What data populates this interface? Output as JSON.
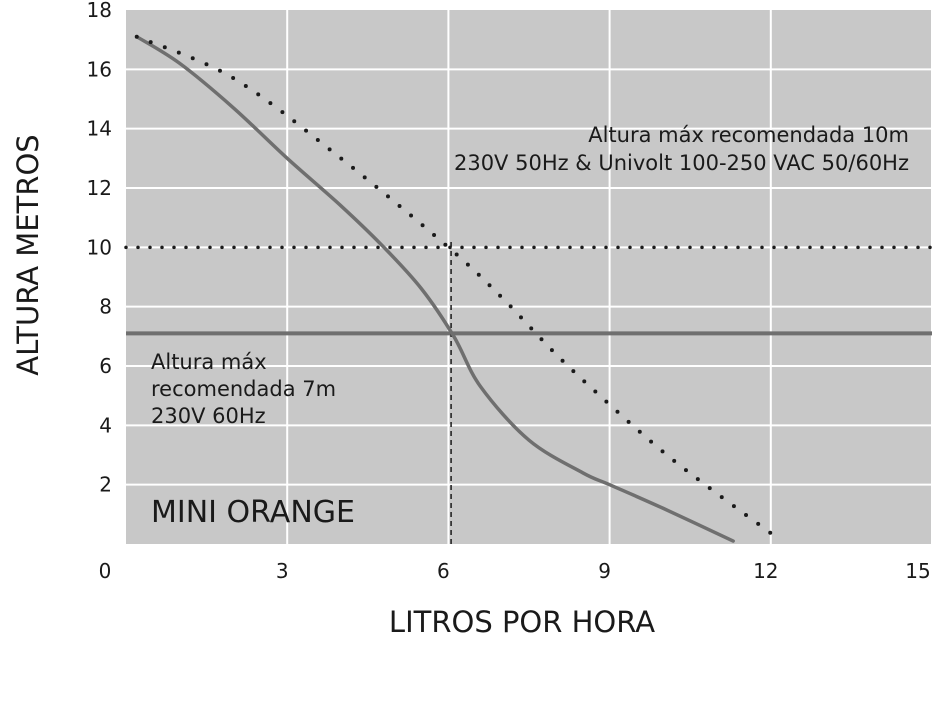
{
  "chart_data": {
    "type": "line",
    "title": "",
    "xlabel": "LITROS POR HORA",
    "ylabel": "ALTURA METROS",
    "xlim": [
      0,
      15
    ],
    "ylim": [
      0,
      18
    ],
    "x_ticks": [
      0,
      3,
      6,
      9,
      12,
      15
    ],
    "y_ticks": [
      2,
      4,
      6,
      8,
      10,
      12,
      14,
      16,
      18
    ],
    "grid": true,
    "colors": {
      "plot_background": "#c8c8c8",
      "grid": "#ffffff",
      "series": "#6f6f6f",
      "reference": "#1a1a1a"
    },
    "series": [
      {
        "style": "solid",
        "x": [
          0.2,
          1.0,
          2.0,
          3.0,
          4.0,
          4.8,
          5.5,
          6.1,
          6.6,
          7.5,
          8.5,
          9.0,
          10.0,
          11.3
        ],
        "y": [
          17.1,
          16.2,
          14.7,
          13.0,
          11.4,
          10.0,
          8.6,
          7.0,
          5.3,
          3.5,
          2.4,
          2.0,
          1.2,
          0.1
        ]
      },
      {
        "style": "dotted",
        "x": [
          0.2,
          2.0,
          4.0,
          6.0,
          7.0,
          8.0,
          9.0,
          10.0,
          11.0,
          12.2
        ],
        "y": [
          17.1,
          15.7,
          13.0,
          10.0,
          8.3,
          6.4,
          4.7,
          3.1,
          1.7,
          0.1
        ]
      }
    ],
    "reference_lines": [
      {
        "axis": "y",
        "value": 10,
        "style": "dotted"
      },
      {
        "axis": "y",
        "value": 7.1,
        "style": "solid"
      },
      {
        "axis": "x",
        "value": 6.05,
        "style": "dashed",
        "y_max": 10.2
      }
    ],
    "annotations": {
      "top_right": [
        "Altura máx recomendada 10m",
        "230V 50Hz & Univolt 100-250 VAC 50/60Hz"
      ],
      "left": [
        "Altura máx",
        "recomendada 7m",
        "230V 60Hz"
      ],
      "product": "MINI ORANGE"
    }
  }
}
